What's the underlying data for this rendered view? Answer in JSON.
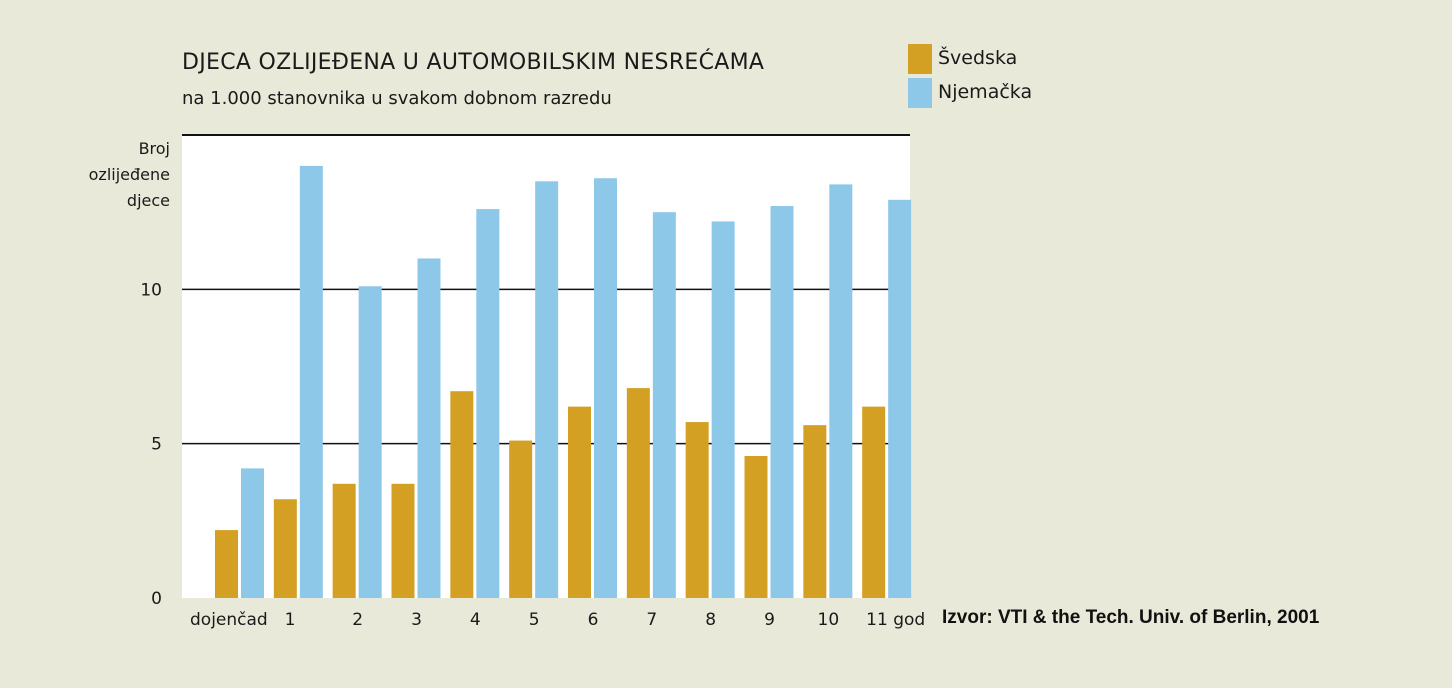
{
  "chart_data": {
    "type": "bar",
    "title": "DJECA OZLIJEĐENA U AUTOMOBILSKIM NESREĆAMA",
    "subtitle": "na 1.000 stanovnika u svakom dobnom razredu",
    "ylabel": "Broj\nozlijeđene\ndjece",
    "xlabel": "",
    "categories": [
      "dojenčad",
      "1",
      "2",
      "3",
      "4",
      "5",
      "6",
      "7",
      "8",
      "9",
      "10",
      "11 god"
    ],
    "series": [
      {
        "name": "Švedska",
        "color": "#d4a024",
        "values": [
          2.2,
          3.2,
          3.7,
          3.7,
          6.7,
          5.1,
          6.2,
          6.8,
          5.7,
          4.6,
          5.6,
          6.2
        ]
      },
      {
        "name": "Njemačka",
        "color": "#8dc8e9",
        "values": [
          4.2,
          14.0,
          10.1,
          11.0,
          12.6,
          13.5,
          13.6,
          12.5,
          12.2,
          12.7,
          13.4,
          12.9
        ]
      }
    ],
    "yticks": [
      0,
      5,
      10
    ],
    "ylim": [
      0,
      15
    ],
    "grid": true,
    "legend_position": "top-right",
    "source": "Izvor: VTI & the Tech. Univ. of Berlin, 2001"
  }
}
